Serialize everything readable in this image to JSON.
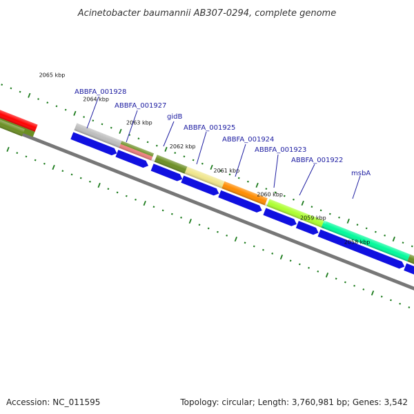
{
  "title": "Acinetobacter baumannii AB307-0294, complete genome",
  "footer": {
    "accession": "Accession: NC_011595",
    "summary": "Topology: circular; Length: 3,760,981 bp; Genes: 3,542"
  },
  "colors": {
    "backbone": "#777777",
    "tick": "#1a7a1a",
    "label": "#1a1aa0",
    "cds": "#1010e0"
  },
  "tick_labels": [
    "2065 kbp",
    "2064 kbp",
    "2063 kbp",
    "2062 kbp",
    "2061 kbp",
    "2060 kbp",
    "2059 kbp",
    "2058 kbp"
  ],
  "gene_labels": [
    "ABBFA_001928",
    "ABBFA_001927",
    "gidB",
    "ABBFA_001925",
    "ABBFA_001924",
    "ABBFA_001923",
    "ABBFA_001922",
    "msbA"
  ],
  "feature_colors": [
    "#ff0000",
    "#6b8e23",
    "#bdbdbd",
    "#f08080",
    "#6b8e23",
    "#f0e68c",
    "#ff8c00",
    "#adff2f",
    "#adff2f",
    "#00fa9a",
    "#6b8e23",
    "#0000ff"
  ]
}
